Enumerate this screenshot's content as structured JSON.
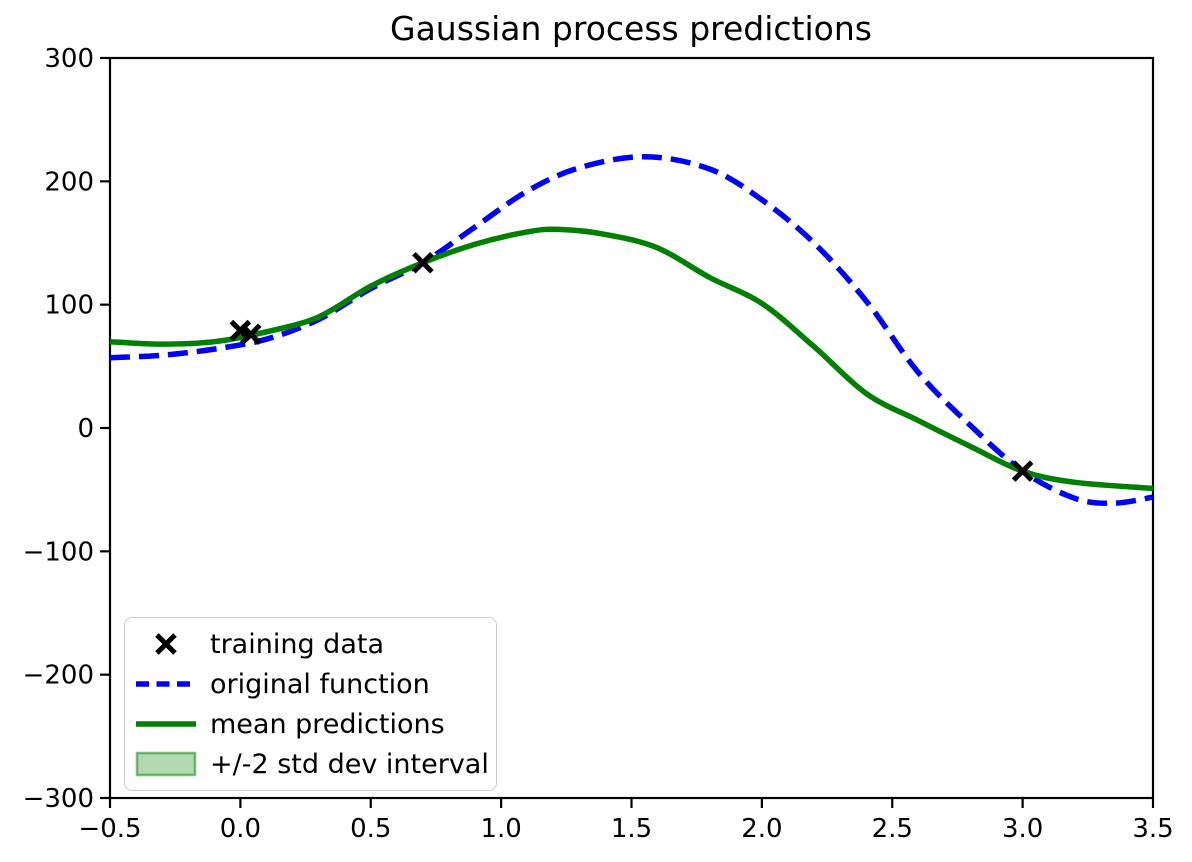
{
  "figure": {
    "title": "Gaussian process predictions",
    "background_color": "#ffffff",
    "axes_edge_color": "#000000"
  },
  "axes": {
    "x_tick_labels": [
      "−0.5",
      "0.0",
      "0.5",
      "1.0",
      "1.5",
      "2.0",
      "2.5",
      "3.0",
      "3.5"
    ],
    "y_tick_labels": [
      "300",
      "200",
      "100",
      "0",
      "−100",
      "−200",
      "−300"
    ]
  },
  "legend": {
    "position": "lower left",
    "entries": [
      {
        "label": "training data",
        "glyph": "x-marker",
        "color": "#000000"
      },
      {
        "label": "original function",
        "glyph": "dashed-line",
        "color": "#0000ff"
      },
      {
        "label": "mean predictions",
        "glyph": "solid-line",
        "color": "#008000"
      },
      {
        "label": "+/-2 std dev interval",
        "glyph": "filled-band",
        "color": "#008000"
      }
    ]
  },
  "chart_data": {
    "type": "line",
    "title": "Gaussian process predictions",
    "xlabel": "",
    "ylabel": "",
    "xlim": [
      -0.5,
      3.5
    ],
    "ylim": [
      -300,
      300
    ],
    "x_ticks": [
      -0.5,
      0.0,
      0.5,
      1.0,
      1.5,
      2.0,
      2.5,
      3.0,
      3.5
    ],
    "y_ticks": [
      300,
      200,
      100,
      0,
      -100,
      -200,
      -300
    ],
    "grid": false,
    "legend_position": "lower left",
    "series": [
      {
        "name": "training data",
        "type": "scatter",
        "marker": "x",
        "color": "#000000",
        "x": [
          0.0,
          0.04,
          0.7,
          3.0
        ],
        "y": [
          79,
          76,
          134,
          -35
        ]
      },
      {
        "name": "original function",
        "type": "line",
        "linestyle": "dashed",
        "color": "#0000ff",
        "x": [
          -0.5,
          -0.3,
          -0.1,
          0.1,
          0.3,
          0.5,
          0.7,
          0.9,
          1.1,
          1.3,
          1.55,
          1.8,
          2.0,
          2.2,
          2.4,
          2.6,
          2.8,
          3.0,
          3.2,
          3.35,
          3.5
        ],
        "y": [
          57,
          59,
          64,
          72,
          88,
          113,
          134,
          163,
          192,
          211,
          220,
          210,
          185,
          150,
          103,
          45,
          2,
          -35,
          -57,
          -61,
          -56
        ]
      },
      {
        "name": "mean predictions",
        "type": "line",
        "linestyle": "solid",
        "color": "#008000",
        "x": [
          -0.5,
          -0.3,
          -0.1,
          0.1,
          0.3,
          0.5,
          0.7,
          0.9,
          1.1,
          1.22,
          1.4,
          1.6,
          1.8,
          2.0,
          2.2,
          2.4,
          2.6,
          2.8,
          3.0,
          3.2,
          3.5
        ],
        "y": [
          70,
          68,
          70,
          78,
          90,
          115,
          134,
          149,
          159,
          161,
          157,
          146,
          122,
          101,
          66,
          28,
          6,
          -15,
          -35,
          -44,
          -49
        ]
      },
      {
        "name": "+/-2 std dev interval",
        "type": "band",
        "follows": "mean predictions",
        "color": "#008000",
        "alpha": 0.3,
        "band_halfwidth_data_units": 2,
        "note": "interval hugs the mean curve; visually negligible width"
      }
    ]
  }
}
